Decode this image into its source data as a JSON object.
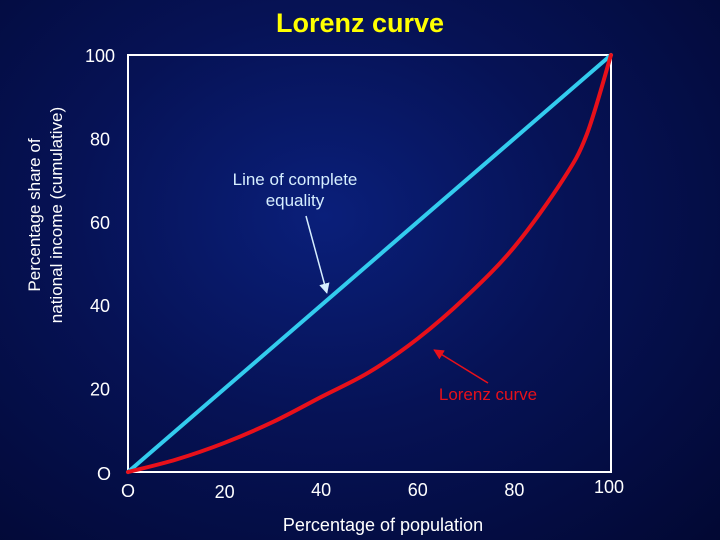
{
  "colors": {
    "title": "#ffff00",
    "axis": "#ffffff",
    "equality_line": "#33ccee",
    "lorenz_curve": "#e8101a",
    "equality_label": "#d6eeff",
    "lorenz_label": "#e8101a"
  },
  "chart_data": {
    "type": "line",
    "title": "Lorenz curve",
    "xlabel": "Percentage of population",
    "ylabel_lines": [
      "Percentage share of",
      "national income (cumulative)"
    ],
    "xlim": [
      0,
      100
    ],
    "ylim": [
      0,
      100
    ],
    "origin_label": "O",
    "x_ticks": [
      {
        "value": 0,
        "label": "O"
      },
      {
        "value": 20,
        "label": "20"
      },
      {
        "value": 40,
        "label": "40"
      },
      {
        "value": 60,
        "label": "60"
      },
      {
        "value": 80,
        "label": "80"
      },
      {
        "value": 100,
        "label": "100"
      }
    ],
    "y_ticks": [
      {
        "value": 20,
        "label": "20"
      },
      {
        "value": 40,
        "label": "40"
      },
      {
        "value": 60,
        "label": "60"
      },
      {
        "value": 80,
        "label": "80"
      },
      {
        "value": 100,
        "label": "100"
      }
    ],
    "series": [
      {
        "key": "equality",
        "x": [
          0,
          100
        ],
        "y": [
          0,
          100
        ]
      },
      {
        "key": "lorenz",
        "x": [
          0,
          10,
          20,
          30,
          40,
          50,
          60,
          70,
          80,
          90,
          95,
          100
        ],
        "y": [
          0,
          3,
          7,
          12,
          18,
          24,
          32,
          42,
          54,
          70,
          81,
          100
        ]
      }
    ],
    "annotations": [
      {
        "key": "equality",
        "lines": [
          "Line of complete",
          "equality"
        ],
        "arrow_to": {
          "x": 42,
          "y": 42
        }
      },
      {
        "key": "lorenz",
        "lines": [
          "Lorenz curve"
        ],
        "arrow_to": {
          "x": 64,
          "y": 30
        }
      }
    ]
  }
}
